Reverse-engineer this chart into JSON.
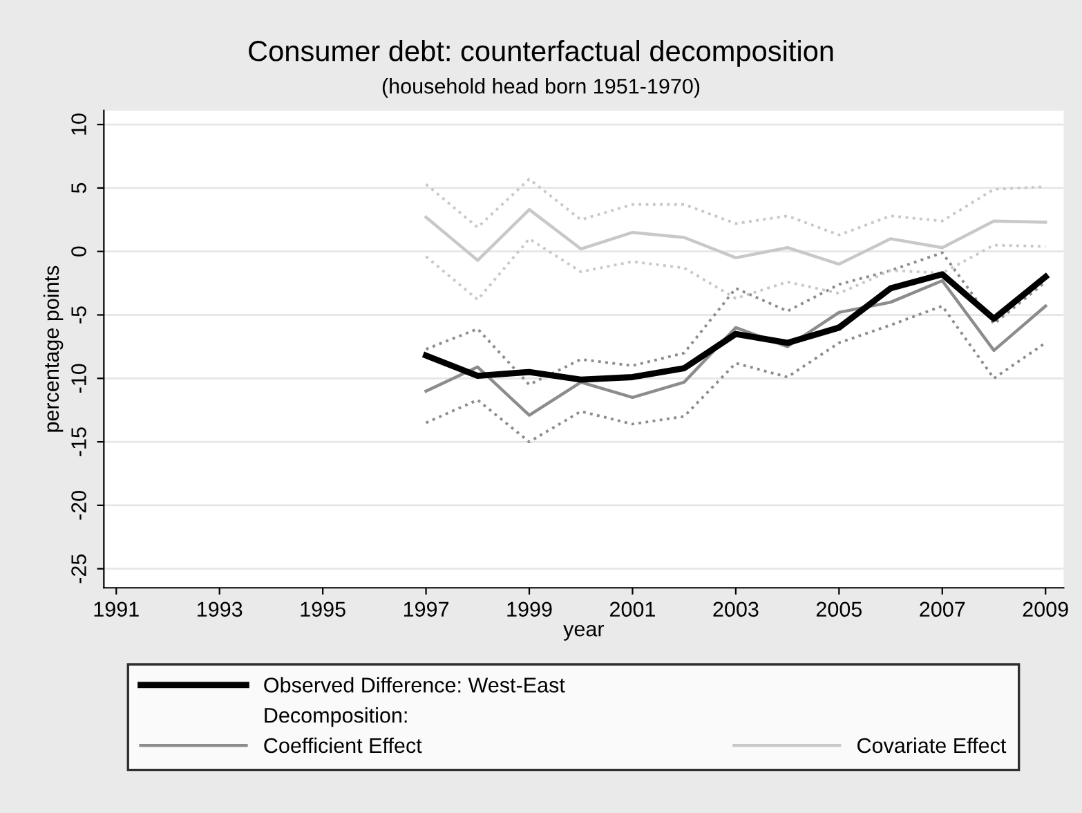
{
  "chart_data": {
    "type": "line",
    "title": "Consumer debt: counterfactual decomposition",
    "subtitle": "(household head born 1951-1970)",
    "xlabel": "year",
    "ylabel": "percentage points",
    "x": [
      1997,
      1998,
      1999,
      2000,
      2001,
      2002,
      2003,
      2004,
      2005,
      2006,
      2007,
      2008,
      2009
    ],
    "series": [
      {
        "name": "Observed Difference: West-East",
        "color": "#000000",
        "values": [
          -8.2,
          -9.8,
          -9.5,
          -10.1,
          -9.9,
          -9.2,
          -6.5,
          -7.2,
          -6.0,
          -2.9,
          -1.8,
          -5.3,
          -2.0
        ]
      },
      {
        "name": "Coefficient Effect",
        "color": "#8c8c8c",
        "values": [
          -11.0,
          -9.1,
          -12.9,
          -10.3,
          -11.5,
          -10.3,
          -6.0,
          -7.5,
          -4.8,
          -4.0,
          -2.3,
          -7.8,
          -4.3
        ]
      },
      {
        "name": "Covariate Effect",
        "color": "#c8c8c8",
        "values": [
          2.7,
          -0.7,
          3.3,
          0.2,
          1.5,
          1.1,
          -0.5,
          0.3,
          -1.0,
          1.0,
          0.3,
          2.4,
          2.3
        ]
      },
      {
        "color": "#8c8c8c",
        "line_style": "dotted",
        "values": [
          -13.5,
          -11.7,
          -15.0,
          -12.6,
          -13.6,
          -13.0,
          -8.8,
          -9.9,
          -7.2,
          -5.8,
          -4.3,
          -10.0,
          -7.2
        ]
      },
      {
        "color": "#8c8c8c",
        "line_style": "dotted",
        "values": [
          -7.7,
          -6.1,
          -10.5,
          -8.5,
          -9.0,
          -8.0,
          -2.9,
          -4.7,
          -2.6,
          -1.5,
          -0.1,
          -5.7,
          -2.4
        ]
      },
      {
        "color": "#c8c8c8",
        "line_style": "dotted",
        "values": [
          -0.4,
          -3.8,
          1.0,
          -1.6,
          -0.8,
          -1.3,
          -3.7,
          -2.4,
          -3.3,
          -1.5,
          -1.7,
          0.5,
          0.4
        ]
      },
      {
        "color": "#c8c8c8",
        "line_style": "dotted",
        "values": [
          5.3,
          1.9,
          5.7,
          2.5,
          3.7,
          3.7,
          2.2,
          2.8,
          1.3,
          2.8,
          2.4,
          4.9,
          5.1
        ]
      }
    ],
    "annotations": [
      "Decomposition:"
    ],
    "xlim": [
      1990.76,
      2009.35
    ],
    "xticks": [
      1991,
      1993,
      1995,
      1997,
      1999,
      2001,
      2003,
      2005,
      2007,
      2009
    ],
    "ylim": [
      -26.5,
      11.1
    ],
    "yticks": [
      -25,
      -20,
      -15,
      -10,
      -5,
      0,
      5,
      10
    ],
    "grid": "y",
    "legend": "bottom",
    "line_style": "solid",
    "marker": "none"
  }
}
